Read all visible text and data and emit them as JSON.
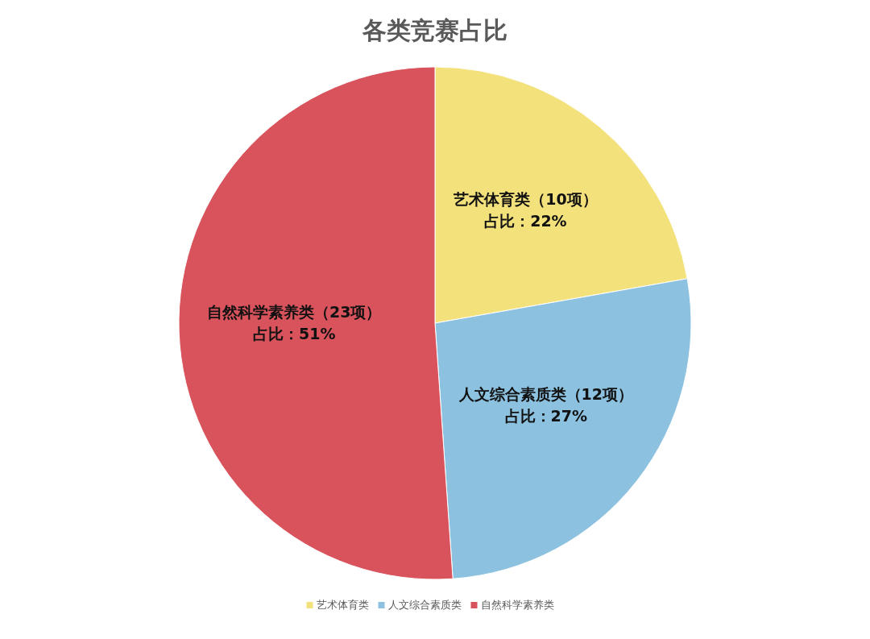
{
  "chart_data": {
    "type": "pie",
    "title": "各类竞赛占比",
    "categories": [
      "艺术体育类",
      "人文综合素质类",
      "自然科学素养类"
    ],
    "values": [
      10,
      12,
      23
    ],
    "colors": [
      "#f3e27c",
      "#8cc2e0",
      "#d9535c"
    ],
    "value_labels": [
      "艺术体育类（10项）占比：22%",
      "人文综合素质类（12项）占比：27%",
      "自然科学素养类（23项）占比：51%"
    ],
    "legend": "bottom"
  }
}
